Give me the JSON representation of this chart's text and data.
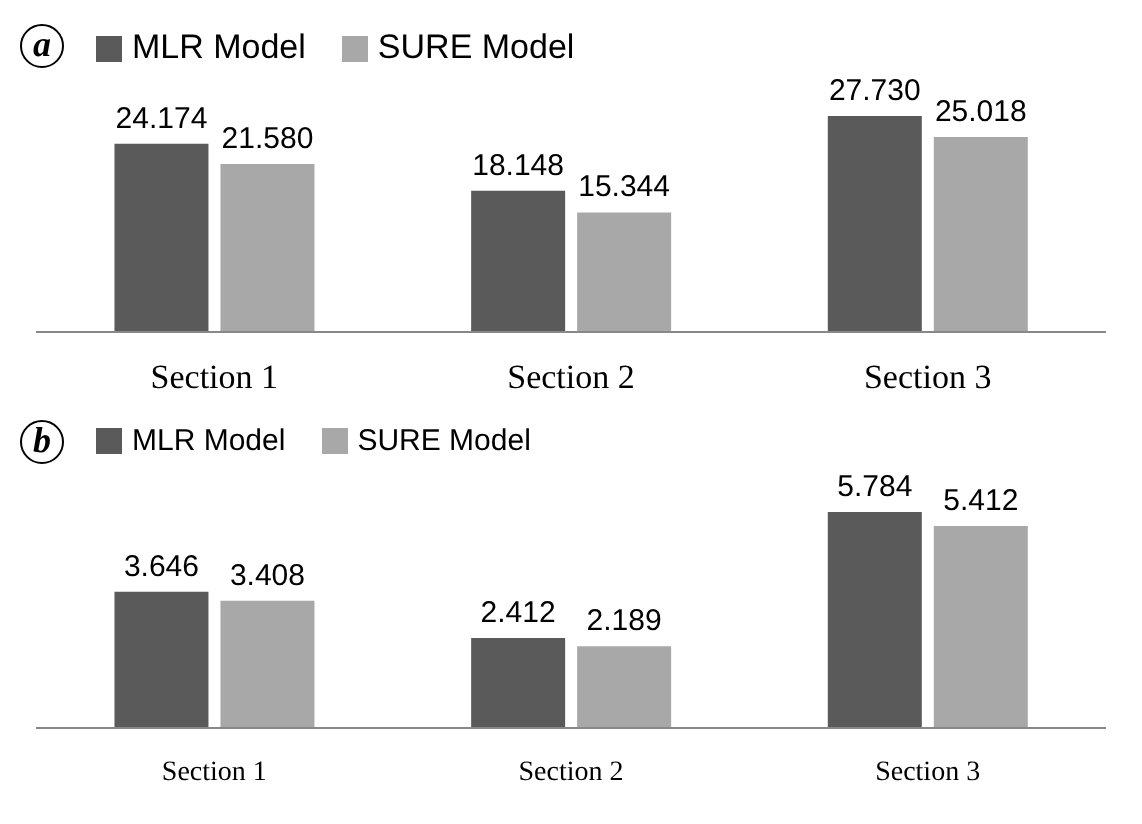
{
  "chart_data": [
    {
      "type": "bar",
      "annotations": [
        "a"
      ],
      "categories": [
        "Section 1",
        "Section 2",
        "Section 3"
      ],
      "series": [
        {
          "name": "MLR Model",
          "color": "#5a5a5a",
          "values": [
            24.174,
            18.148,
            27.73
          ],
          "value_labels": [
            "24.174",
            "18.148",
            "27.730"
          ]
        },
        {
          "name": "SURE Model",
          "color": "#a8a8a8",
          "values": [
            21.58,
            15.344,
            25.018
          ],
          "value_labels": [
            "21.580",
            "15.344",
            "25.018"
          ]
        }
      ],
      "legend": "top"
    },
    {
      "type": "bar",
      "annotations": [
        "b"
      ],
      "categories": [
        "Section 1",
        "Section 2",
        "Section 3"
      ],
      "series": [
        {
          "name": "MLR Model",
          "color": "#5a5a5a",
          "values": [
            3.646,
            2.412,
            5.784
          ],
          "value_labels": [
            "3.646",
            "2.412",
            "5.784"
          ]
        },
        {
          "name": "SURE Model",
          "color": "#a8a8a8",
          "values": [
            3.408,
            2.189,
            5.412
          ],
          "value_labels": [
            "3.408",
            "2.189",
            "5.412"
          ]
        }
      ],
      "legend": "top"
    }
  ]
}
